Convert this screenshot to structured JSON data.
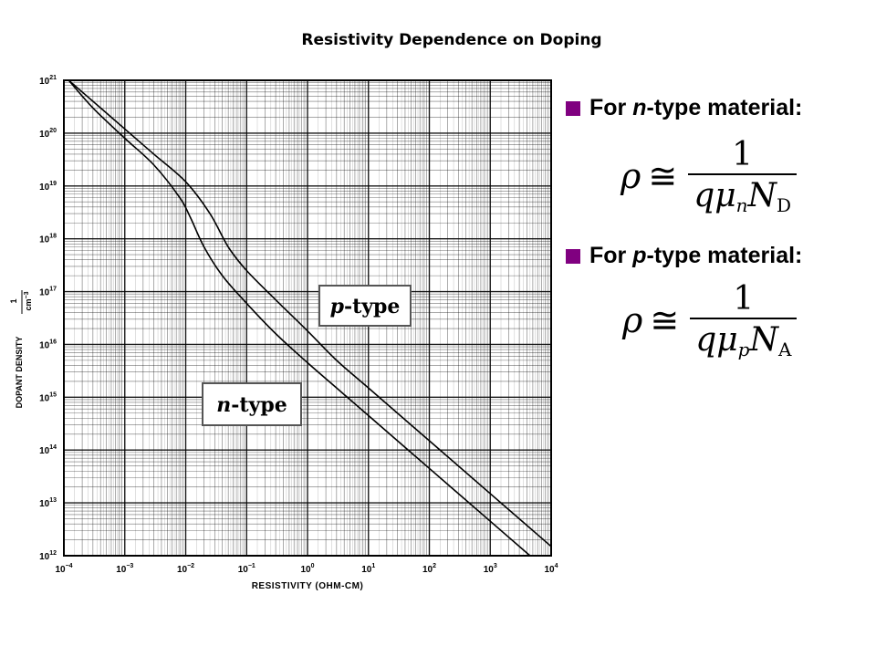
{
  "page": {
    "title": "Resistivity Dependence on Doping"
  },
  "bullets": [
    {
      "prefix": "For ",
      "italic": "n",
      "suffix": "-type material:"
    },
    {
      "prefix": "For ",
      "italic": "p",
      "suffix": "-type material:"
    }
  ],
  "formulas": [
    {
      "lhs": "ρ",
      "approx": "≅",
      "numerator": "1",
      "den_q": "q",
      "den_mu": "μ",
      "mu_sub": "n",
      "den_N": "N",
      "N_sub": "D"
    },
    {
      "lhs": "ρ",
      "approx": "≅",
      "numerator": "1",
      "den_q": "q",
      "den_mu": "μ",
      "mu_sub": "p",
      "den_N": "N",
      "N_sub": "A"
    }
  ],
  "colors": {
    "bullet": "#800080",
    "grid": "#000000",
    "curve": "#000000"
  },
  "chart_data": {
    "type": "line",
    "xlabel": "RESISTIVITY (OHM-CM)",
    "ylabel_text": "DOPANT DENSITY",
    "ylabel_unit_num": "1",
    "ylabel_unit_den": "cm",
    "ylabel_unit_exp": "−3",
    "xscale": "log",
    "yscale": "log",
    "xlim": [
      0.0001,
      10000
    ],
    "ylim": [
      1000000000000.0,
      1e+21
    ],
    "x_ticks": [
      {
        "base": "10",
        "exp": "−4"
      },
      {
        "base": "10",
        "exp": "−3"
      },
      {
        "base": "10",
        "exp": "−2"
      },
      {
        "base": "10",
        "exp": "−1"
      },
      {
        "base": "10",
        "exp": "0"
      },
      {
        "base": "10",
        "exp": "1"
      },
      {
        "base": "10",
        "exp": "2"
      },
      {
        "base": "10",
        "exp": "3"
      },
      {
        "base": "10",
        "exp": "4"
      }
    ],
    "y_ticks": [
      {
        "base": "10",
        "exp": "12"
      },
      {
        "base": "10",
        "exp": "13"
      },
      {
        "base": "10",
        "exp": "14"
      },
      {
        "base": "10",
        "exp": "15"
      },
      {
        "base": "10",
        "exp": "16"
      },
      {
        "base": "10",
        "exp": "17"
      },
      {
        "base": "10",
        "exp": "18"
      },
      {
        "base": "10",
        "exp": "19"
      },
      {
        "base": "10",
        "exp": "20"
      },
      {
        "base": "10",
        "exp": "21"
      }
    ],
    "grid": true,
    "series": [
      {
        "name": "n-type",
        "name_italic": "n",
        "name_suffix": "-type",
        "points": [
          [
            0.00012,
            1e+21
          ],
          [
            0.0003,
            3e+20
          ],
          [
            0.001,
            8e+19
          ],
          [
            0.003,
            2.5e+19
          ],
          [
            0.008,
            6e+18
          ],
          [
            0.012,
            2.5e+18
          ],
          [
            0.02,
            7e+17
          ],
          [
            0.04,
            2e+17
          ],
          [
            0.1,
            6e+16
          ],
          [
            0.3,
            1.6e+16
          ],
          [
            1,
            4500000000000000.0
          ],
          [
            3,
            1500000000000000.0
          ],
          [
            10,
            450000000000000.0
          ],
          [
            100,
            45000000000000.0
          ],
          [
            1000,
            4500000000000.0
          ],
          [
            4500,
            1000000000000.0
          ]
        ]
      },
      {
        "name": "p-type",
        "name_italic": "p",
        "name_suffix": "-type",
        "points": [
          [
            0.00012,
            1e+21
          ],
          [
            0.0004,
            3e+20
          ],
          [
            0.001,
            1.2e+20
          ],
          [
            0.003,
            4e+19
          ],
          [
            0.01,
            1.2e+19
          ],
          [
            0.025,
            3e+18
          ],
          [
            0.05,
            7e+17
          ],
          [
            0.1,
            2.5e+17
          ],
          [
            0.3,
            7e+16
          ],
          [
            1,
            1.8e+16
          ],
          [
            3,
            5000000000000000.0
          ],
          [
            10,
            1500000000000000.0
          ],
          [
            100,
            150000000000000.0
          ],
          [
            1000,
            15000000000000.0
          ],
          [
            10000,
            1500000000000.0
          ]
        ]
      }
    ]
  }
}
